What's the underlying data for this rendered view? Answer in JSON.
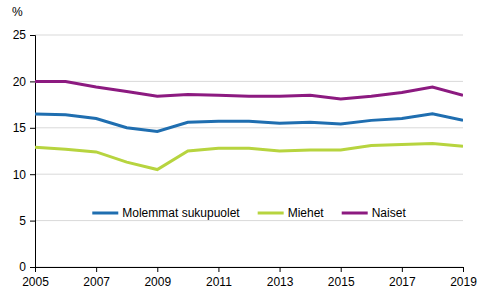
{
  "chart_data": {
    "type": "line",
    "y_label": "%",
    "x": [
      2005,
      2006,
      2007,
      2008,
      2009,
      2010,
      2011,
      2012,
      2013,
      2014,
      2015,
      2016,
      2017,
      2018,
      2019
    ],
    "series": [
      {
        "name": "Molemmat sukupuolet",
        "color": "#1f6eb0",
        "values": [
          16.5,
          16.4,
          16.0,
          15.0,
          14.6,
          15.6,
          15.7,
          15.7,
          15.5,
          15.6,
          15.4,
          15.8,
          16.0,
          16.5,
          15.8
        ]
      },
      {
        "name": "Miehet",
        "color": "#b7d43f",
        "values": [
          12.9,
          12.7,
          12.4,
          11.3,
          10.5,
          12.5,
          12.8,
          12.8,
          12.5,
          12.6,
          12.6,
          13.1,
          13.2,
          13.3,
          13.0
        ]
      },
      {
        "name": "Naiset",
        "color": "#8c1a80",
        "values": [
          20.0,
          20.0,
          19.4,
          18.9,
          18.4,
          18.6,
          18.5,
          18.4,
          18.4,
          18.5,
          18.1,
          18.4,
          18.8,
          19.4,
          18.5
        ]
      }
    ],
    "xlim": [
      2005,
      2019
    ],
    "xticks": [
      2005,
      2007,
      2009,
      2011,
      2013,
      2015,
      2017,
      2019
    ],
    "ylim": [
      0,
      25
    ],
    "yticks": [
      0,
      5,
      10,
      15,
      20,
      25
    ],
    "grid": true,
    "legend": "lower center"
  }
}
